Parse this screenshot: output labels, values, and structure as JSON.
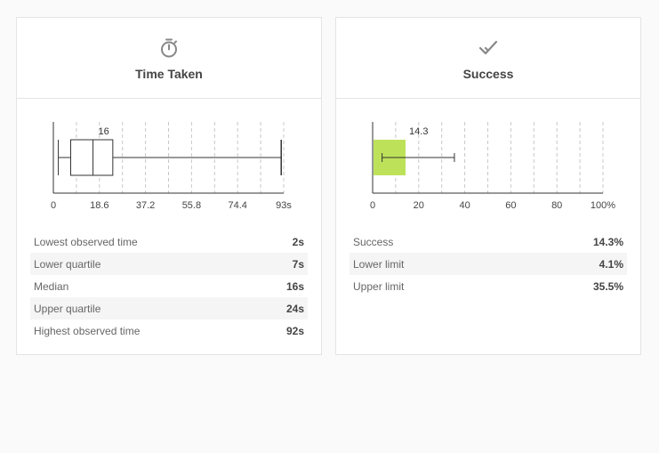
{
  "cards": [
    {
      "title": "Time Taken",
      "icon": "stopwatch-icon",
      "stats": [
        {
          "label": "Lowest observed time",
          "value": "2s"
        },
        {
          "label": "Lower quartile",
          "value": "7s"
        },
        {
          "label": "Median",
          "value": "16s"
        },
        {
          "label": "Upper quartile",
          "value": "24s"
        },
        {
          "label": "Highest observed time",
          "value": "92s"
        }
      ]
    },
    {
      "title": "Success",
      "icon": "checkmark-icon",
      "stats": [
        {
          "label": "Success",
          "value": "14.3%"
        },
        {
          "label": "Lower limit",
          "value": "4.1%"
        },
        {
          "label": "Upper limit",
          "value": "35.5%"
        }
      ]
    }
  ],
  "chart_data": [
    {
      "type": "boxplot",
      "min": 2,
      "q1": 7,
      "median": 16,
      "q3": 24,
      "max": 92,
      "median_label": "16",
      "xlim": [
        0,
        93
      ],
      "tick_labels": [
        "0",
        "18.6",
        "37.2",
        "55.8",
        "74.4",
        "93s"
      ],
      "gridlines": [
        0,
        9.3,
        18.6,
        27.9,
        37.2,
        46.5,
        55.8,
        65.1,
        74.4,
        83.7,
        93
      ],
      "grid": true
    },
    {
      "type": "bar",
      "value": 14.3,
      "value_label": "14.3",
      "error_low": 4.1,
      "error_high": 35.5,
      "xlim": [
        0,
        100
      ],
      "tick_labels": [
        "0",
        "20",
        "40",
        "60",
        "80",
        "100%"
      ],
      "gridlines": [
        0,
        10,
        20,
        30,
        40,
        50,
        60,
        70,
        80,
        90,
        100
      ],
      "grid": true,
      "bar_color": "#bde25a"
    }
  ]
}
